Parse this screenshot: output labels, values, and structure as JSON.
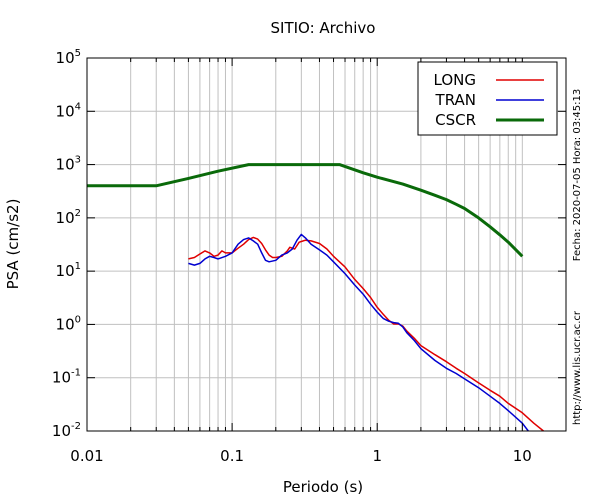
{
  "chart_data": {
    "type": "line",
    "title": "SITIO: Archivo",
    "xlabel": "Periodo (s)",
    "ylabel": "PSA (cm/s2)",
    "xscale": "log",
    "yscale": "log",
    "xlim": [
      0.01,
      20
    ],
    "ylim": [
      0.01,
      100000
    ],
    "grid": true,
    "legend_position": "top-right",
    "x_ticks": [
      {
        "value": 0.01,
        "label": "0.01"
      },
      {
        "value": 0.1,
        "label": "0.1"
      },
      {
        "value": 1,
        "label": "1"
      },
      {
        "value": 10,
        "label": "10"
      }
    ],
    "y_ticks": [
      {
        "value": 0.01,
        "base": "10",
        "exp": "-2"
      },
      {
        "value": 0.1,
        "base": "10",
        "exp": "-1"
      },
      {
        "value": 1,
        "base": "10",
        "exp": "0"
      },
      {
        "value": 10,
        "base": "10",
        "exp": "1"
      },
      {
        "value": 100,
        "base": "10",
        "exp": "2"
      },
      {
        "value": 1000,
        "base": "10",
        "exp": "3"
      },
      {
        "value": 10000,
        "base": "10",
        "exp": "4"
      },
      {
        "value": 100000,
        "base": "10",
        "exp": "5"
      }
    ],
    "series": [
      {
        "name": "LONG",
        "color": "#e00000",
        "width": 1.5,
        "points": [
          [
            0.05,
            17
          ],
          [
            0.055,
            18
          ],
          [
            0.06,
            21
          ],
          [
            0.065,
            24
          ],
          [
            0.07,
            22
          ],
          [
            0.075,
            19
          ],
          [
            0.08,
            20
          ],
          [
            0.085,
            24
          ],
          [
            0.09,
            22
          ],
          [
            0.1,
            22
          ],
          [
            0.11,
            27
          ],
          [
            0.12,
            32
          ],
          [
            0.13,
            39
          ],
          [
            0.14,
            43
          ],
          [
            0.15,
            40
          ],
          [
            0.16,
            33
          ],
          [
            0.17,
            25
          ],
          [
            0.18,
            20
          ],
          [
            0.19,
            18
          ],
          [
            0.2,
            18
          ],
          [
            0.22,
            19
          ],
          [
            0.24,
            24
          ],
          [
            0.25,
            28
          ],
          [
            0.27,
            26
          ],
          [
            0.29,
            35
          ],
          [
            0.3,
            36
          ],
          [
            0.32,
            38
          ],
          [
            0.35,
            37
          ],
          [
            0.4,
            33
          ],
          [
            0.45,
            26
          ],
          [
            0.5,
            19
          ],
          [
            0.6,
            12
          ],
          [
            0.7,
            7
          ],
          [
            0.8,
            4.7
          ],
          [
            0.9,
            3.2
          ],
          [
            1.0,
            2.1
          ],
          [
            1.1,
            1.55
          ],
          [
            1.2,
            1.2
          ],
          [
            1.3,
            1.02
          ],
          [
            1.4,
            1.02
          ],
          [
            1.5,
            0.93
          ],
          [
            1.6,
            0.75
          ],
          [
            1.8,
            0.55
          ],
          [
            2.0,
            0.4
          ],
          [
            2.5,
            0.27
          ],
          [
            3.0,
            0.2
          ],
          [
            3.5,
            0.15
          ],
          [
            4.0,
            0.12
          ],
          [
            5.0,
            0.08
          ],
          [
            6.0,
            0.058
          ],
          [
            7.0,
            0.045
          ],
          [
            8.0,
            0.033
          ],
          [
            10.0,
            0.022
          ],
          [
            12.0,
            0.014
          ],
          [
            14.0,
            0.01
          ]
        ]
      },
      {
        "name": "TRAN",
        "color": "#0000d0",
        "width": 1.5,
        "points": [
          [
            0.05,
            14
          ],
          [
            0.055,
            13
          ],
          [
            0.06,
            14
          ],
          [
            0.065,
            17
          ],
          [
            0.07,
            19
          ],
          [
            0.075,
            18
          ],
          [
            0.08,
            17
          ],
          [
            0.09,
            19
          ],
          [
            0.1,
            22
          ],
          [
            0.11,
            32
          ],
          [
            0.12,
            39
          ],
          [
            0.13,
            42
          ],
          [
            0.14,
            37
          ],
          [
            0.15,
            32
          ],
          [
            0.16,
            22
          ],
          [
            0.17,
            16
          ],
          [
            0.18,
            15
          ],
          [
            0.2,
            16
          ],
          [
            0.22,
            20
          ],
          [
            0.24,
            22
          ],
          [
            0.26,
            26
          ],
          [
            0.28,
            38
          ],
          [
            0.3,
            49
          ],
          [
            0.32,
            42
          ],
          [
            0.35,
            32
          ],
          [
            0.4,
            25
          ],
          [
            0.45,
            20
          ],
          [
            0.5,
            15
          ],
          [
            0.6,
            9
          ],
          [
            0.7,
            5.5
          ],
          [
            0.8,
            3.7
          ],
          [
            0.9,
            2.4
          ],
          [
            1.0,
            1.7
          ],
          [
            1.1,
            1.3
          ],
          [
            1.2,
            1.15
          ],
          [
            1.3,
            1.08
          ],
          [
            1.4,
            1.05
          ],
          [
            1.5,
            0.9
          ],
          [
            1.6,
            0.7
          ],
          [
            1.8,
            0.5
          ],
          [
            2.0,
            0.35
          ],
          [
            2.5,
            0.21
          ],
          [
            3.0,
            0.15
          ],
          [
            3.5,
            0.12
          ],
          [
            4.0,
            0.095
          ],
          [
            5.0,
            0.065
          ],
          [
            6.0,
            0.045
          ],
          [
            7.0,
            0.033
          ],
          [
            8.0,
            0.024
          ],
          [
            10.0,
            0.014
          ],
          [
            11.0,
            0.01
          ]
        ]
      },
      {
        "name": "CSCR",
        "color": "#0a6a0a",
        "width": 3,
        "points": [
          [
            0.01,
            400
          ],
          [
            0.03,
            400
          ],
          [
            0.05,
            550
          ],
          [
            0.08,
            750
          ],
          [
            0.13,
            1000
          ],
          [
            0.55,
            1000
          ],
          [
            0.8,
            700
          ],
          [
            1.0,
            580
          ],
          [
            1.5,
            430
          ],
          [
            2.0,
            330
          ],
          [
            2.5,
            265
          ],
          [
            3.0,
            220
          ],
          [
            3.5,
            180
          ],
          [
            4.0,
            150
          ],
          [
            5.0,
            100
          ],
          [
            6.0,
            68
          ],
          [
            7.0,
            48
          ],
          [
            8.0,
            35
          ],
          [
            10.0,
            19
          ]
        ]
      }
    ]
  },
  "side_labels": {
    "fecha": "Fecha: 2020-07-05  Hora: 03:45:13",
    "url": "http://www.lis.ucr.ac.cr"
  }
}
